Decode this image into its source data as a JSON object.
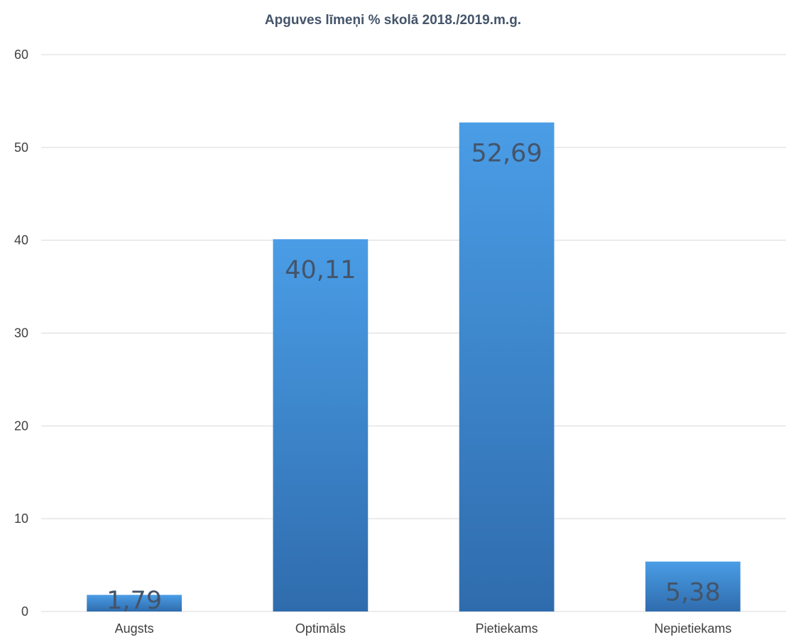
{
  "chart_data": {
    "type": "bar",
    "title": "Apguves līmeņi % skolā 2018./2019.m.g.",
    "xlabel": "",
    "ylabel": "",
    "categories": [
      "Augsts",
      "Optimāls",
      "Pietiekams",
      "Nepietiekams"
    ],
    "values": [
      1.79,
      40.11,
      52.69,
      5.38
    ],
    "data_labels": [
      "1,79",
      "40,11",
      "52,69",
      "5,38"
    ],
    "ylim": [
      0,
      60
    ],
    "yticks": [
      0,
      10,
      20,
      30,
      40,
      50,
      60
    ],
    "grid": true,
    "legend": "none",
    "colors": {
      "bar_top": "#4a9de6",
      "bar_bottom": "#2f6cad",
      "gridline": "#d9d9d9",
      "axis_text": "#404040",
      "title": "#44546a",
      "data_label": "#44546a"
    }
  }
}
